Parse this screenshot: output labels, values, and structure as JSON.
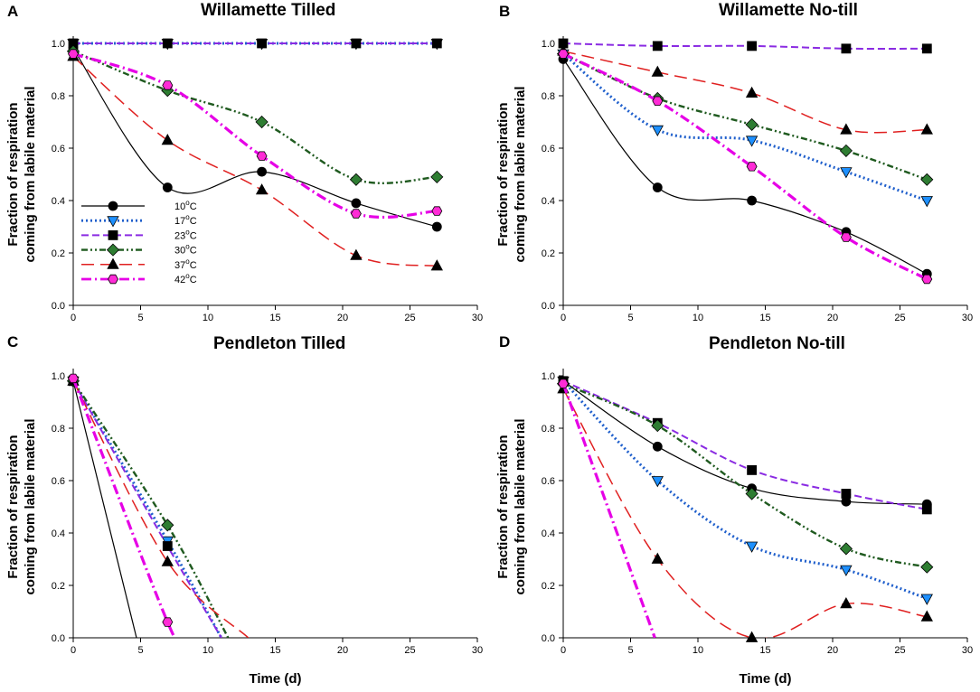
{
  "colors": {
    "10C": "#000000",
    "17C": "#1f5fcc",
    "23C": "#8a2be2",
    "30C": "#1f5a1f",
    "37C": "#e02020",
    "42C": "#e600e6",
    "marker_10C": "#000000",
    "marker_17C": "#1e90ff",
    "marker_23C": "#000000",
    "marker_30C": "#2e7d32",
    "marker_37C": "#000000",
    "marker_42C": "#ff2bd6"
  },
  "legend": {
    "entries": [
      {
        "key": "10C",
        "label_main": "10",
        "label_sup": "o",
        "label_tail": "C",
        "marker": "circle",
        "dash": "solid"
      },
      {
        "key": "17C",
        "label_main": "17",
        "label_sup": "o",
        "label_tail": "C",
        "marker": "triangle-down",
        "dash": "dot"
      },
      {
        "key": "23C",
        "label_main": "23",
        "label_sup": "o",
        "label_tail": "C",
        "marker": "square",
        "dash": "dash"
      },
      {
        "key": "30C",
        "label_main": "30",
        "label_sup": "o",
        "label_tail": "C",
        "marker": "diamond",
        "dash": "dashdotdot"
      },
      {
        "key": "37C",
        "label_main": "37",
        "label_sup": "o",
        "label_tail": "C",
        "marker": "triangle-up",
        "dash": "longdash"
      },
      {
        "key": "42C",
        "label_main": "42",
        "label_sup": "o",
        "label_tail": "C",
        "marker": "hexagon",
        "dash": "dashdot"
      }
    ],
    "placement": "lower-left of panel A"
  },
  "chart_data": [
    {
      "panel": "A",
      "type": "line",
      "title": "Willamette Tilled",
      "xlabel": "",
      "ylabel_line1": "Fraction of respiration",
      "ylabel_line2": "coming from labile material",
      "xlim": [
        0,
        30
      ],
      "ylim": [
        0,
        1.0
      ],
      "xticks": [
        0,
        5,
        10,
        15,
        20,
        25,
        30
      ],
      "yticks": [
        "0.0",
        "0.2",
        "0.4",
        "0.6",
        "0.8",
        "1.0"
      ],
      "series": [
        {
          "name": "10C",
          "x": [
            0,
            7,
            14,
            21,
            27
          ],
          "y": [
            0.98,
            0.45,
            0.51,
            0.39,
            0.3
          ]
        },
        {
          "name": "17C",
          "x": [
            0,
            7,
            14,
            21,
            27
          ],
          "y": [
            1.0,
            1.0,
            1.0,
            1.0,
            1.0
          ]
        },
        {
          "name": "23C",
          "x": [
            0,
            7,
            14,
            21,
            27
          ],
          "y": [
            1.0,
            1.0,
            1.0,
            1.0,
            1.0
          ]
        },
        {
          "name": "30C",
          "x": [
            0,
            7,
            14,
            21,
            27
          ],
          "y": [
            0.97,
            0.82,
            0.7,
            0.48,
            0.49
          ]
        },
        {
          "name": "37C",
          "x": [
            0,
            7,
            14,
            21,
            27
          ],
          "y": [
            0.95,
            0.63,
            0.44,
            0.19,
            0.15
          ]
        },
        {
          "name": "42C",
          "x": [
            0,
            7,
            14,
            21,
            27
          ],
          "y": [
            0.96,
            0.84,
            0.57,
            0.35,
            0.36
          ]
        }
      ]
    },
    {
      "panel": "B",
      "type": "line",
      "title": "Willamette No-till",
      "xlabel": "",
      "ylabel_line1": "Fraction of respiration",
      "ylabel_line2": "coming from labile material",
      "xlim": [
        0,
        30
      ],
      "ylim": [
        0,
        1.0
      ],
      "xticks": [
        0,
        5,
        10,
        15,
        20,
        25,
        30
      ],
      "yticks": [
        "0.0",
        "0.2",
        "0.4",
        "0.6",
        "0.8",
        "1.0"
      ],
      "series": [
        {
          "name": "10C",
          "x": [
            0,
            7,
            14,
            21,
            27
          ],
          "y": [
            0.94,
            0.45,
            0.4,
            0.28,
            0.12
          ]
        },
        {
          "name": "17C",
          "x": [
            0,
            7,
            14,
            21,
            27
          ],
          "y": [
            0.96,
            0.67,
            0.63,
            0.51,
            0.4
          ]
        },
        {
          "name": "23C",
          "x": [
            0,
            7,
            14,
            21,
            27
          ],
          "y": [
            1.0,
            0.99,
            0.99,
            0.98,
            0.98
          ]
        },
        {
          "name": "30C",
          "x": [
            0,
            7,
            14,
            21,
            27
          ],
          "y": [
            0.96,
            0.79,
            0.69,
            0.59,
            0.48
          ]
        },
        {
          "name": "37C",
          "x": [
            0,
            7,
            14,
            21,
            27
          ],
          "y": [
            0.97,
            0.89,
            0.81,
            0.67,
            0.67
          ]
        },
        {
          "name": "42C",
          "x": [
            0,
            7,
            14,
            21,
            27
          ],
          "y": [
            0.96,
            0.78,
            0.53,
            0.26,
            0.1
          ]
        }
      ]
    },
    {
      "panel": "C",
      "type": "line",
      "title": "Pendleton Tilled",
      "xlabel": "Time (d)",
      "ylabel_line1": "Fraction of respiration",
      "ylabel_line2": "coming from labile material",
      "xlim": [
        0,
        30
      ],
      "ylim": [
        0,
        1.0
      ],
      "xticks": [
        0,
        5,
        10,
        15,
        20,
        25,
        30
      ],
      "yticks": [
        "0.0",
        "0.2",
        "0.4",
        "0.6",
        "0.8",
        "1.0"
      ],
      "series": [
        {
          "name": "10C",
          "x": [
            0,
            4.7
          ],
          "y": [
            0.98,
            0.0
          ],
          "markers": [
            true,
            false
          ]
        },
        {
          "name": "17C",
          "x": [
            0,
            7,
            11
          ],
          "y": [
            0.98,
            0.37,
            0.0
          ],
          "markers": [
            true,
            true,
            false
          ]
        },
        {
          "name": "23C",
          "x": [
            0,
            7,
            11
          ],
          "y": [
            0.98,
            0.35,
            0.0
          ],
          "markers": [
            true,
            true,
            false
          ]
        },
        {
          "name": "30C",
          "x": [
            0,
            7,
            11.5
          ],
          "y": [
            0.98,
            0.43,
            0.0
          ],
          "markers": [
            true,
            true,
            false
          ]
        },
        {
          "name": "37C",
          "x": [
            0,
            7,
            13
          ],
          "y": [
            0.98,
            0.29,
            0.0
          ],
          "markers": [
            true,
            true,
            false
          ]
        },
        {
          "name": "42C",
          "x": [
            0,
            7,
            8.1
          ],
          "y": [
            0.99,
            0.06,
            0.0
          ],
          "markers": [
            true,
            true,
            false
          ]
        }
      ]
    },
    {
      "panel": "D",
      "type": "line",
      "title": "Pendleton No-till",
      "xlabel": "Time (d)",
      "ylabel_line1": "Fraction of respiration",
      "ylabel_line2": "coming from labile material",
      "xlim": [
        0,
        30
      ],
      "ylim": [
        0,
        1.0
      ],
      "xticks": [
        0,
        5,
        10,
        15,
        20,
        25,
        30
      ],
      "yticks": [
        "0.0",
        "0.2",
        "0.4",
        "0.6",
        "0.8",
        "1.0"
      ],
      "series": [
        {
          "name": "10C",
          "x": [
            0,
            7,
            14,
            21,
            27
          ],
          "y": [
            0.98,
            0.73,
            0.57,
            0.52,
            0.51
          ]
        },
        {
          "name": "17C",
          "x": [
            0,
            7,
            14,
            21,
            27
          ],
          "y": [
            0.98,
            0.6,
            0.35,
            0.26,
            0.15
          ]
        },
        {
          "name": "23C",
          "x": [
            0,
            7,
            14,
            21,
            27
          ],
          "y": [
            0.98,
            0.82,
            0.64,
            0.55,
            0.49
          ]
        },
        {
          "name": "30C",
          "x": [
            0,
            7,
            14,
            21,
            27
          ],
          "y": [
            0.97,
            0.81,
            0.55,
            0.34,
            0.27
          ]
        },
        {
          "name": "37C",
          "x": [
            0,
            7,
            14,
            21,
            27
          ],
          "y": [
            0.95,
            0.3,
            0.0,
            0.13,
            0.08
          ]
        },
        {
          "name": "42C",
          "x": [
            0,
            6.8
          ],
          "y": [
            0.97,
            0.0
          ],
          "markers": [
            true,
            false
          ]
        }
      ]
    }
  ]
}
